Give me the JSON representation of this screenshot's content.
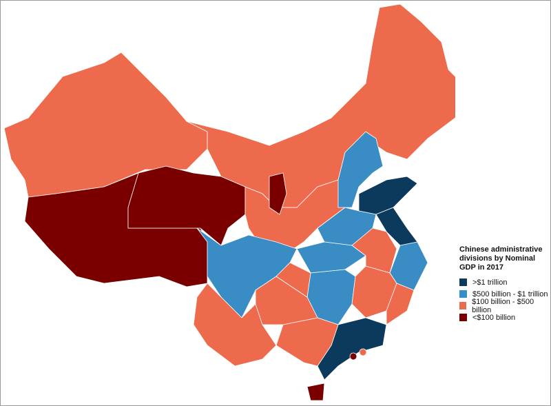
{
  "legend": {
    "title": "Chinese administrative divisions by Nominal GDP in 2017",
    "items": [
      {
        "label": ">$1 trillion",
        "color": "#0b3a5c"
      },
      {
        "label": "$500 billion - $1 trillion",
        "color": "#3a8cc4"
      },
      {
        "label": "$100 billion - $500 billion",
        "color": "#ee6a4d"
      },
      {
        "label": "<$100 billion",
        "color": "#7a0000"
      }
    ]
  }
}
